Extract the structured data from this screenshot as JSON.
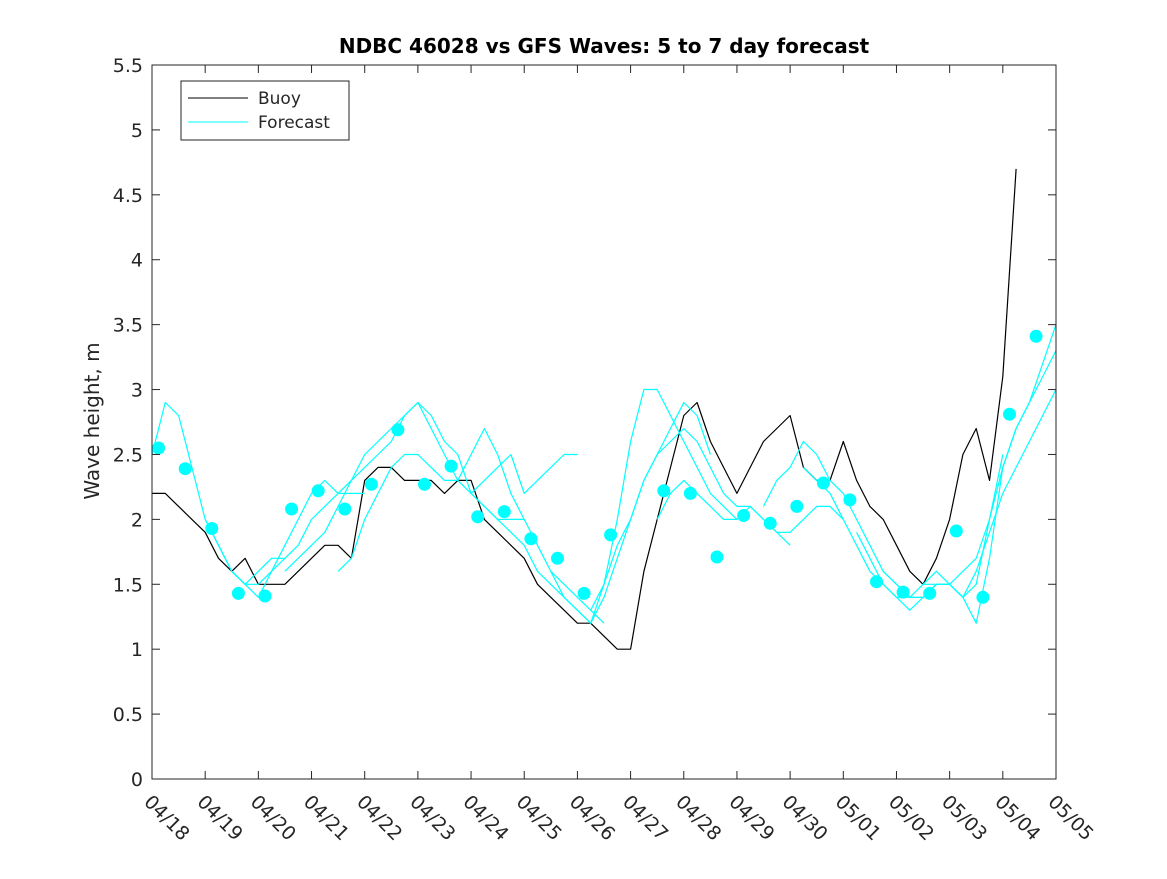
{
  "chart_data": {
    "type": "line",
    "title": "NDBC 46028 vs GFS Waves: 5 to 7 day forecast",
    "xlabel": "",
    "ylabel": "Wave height, m",
    "xlim_days": [
      0,
      17
    ],
    "ylim": [
      0,
      5.5
    ],
    "yticks": [
      0,
      0.5,
      1,
      1.5,
      2,
      2.5,
      3,
      3.5,
      4,
      4.5,
      5,
      5.5
    ],
    "ytick_labels": [
      "0",
      "0.5",
      "1",
      "1.5",
      "2",
      "2.5",
      "3",
      "3.5",
      "4",
      "4.5",
      "5",
      "5.5"
    ],
    "xtick_labels": [
      "04/18",
      "04/19",
      "04/20",
      "04/21",
      "04/22",
      "04/23",
      "04/24",
      "04/25",
      "04/26",
      "04/27",
      "04/28",
      "04/29",
      "04/30",
      "05/01",
      "05/02",
      "05/03",
      "05/04",
      "05/05"
    ],
    "grid": false,
    "legend_position": "top-left",
    "colors": {
      "buoy": "#000000",
      "forecast": "#00ffff"
    },
    "series": [
      {
        "name": "Buoy",
        "style": "line",
        "color": "#000000",
        "x": [
          "04/18 00:00",
          "04/18 06:00",
          "04/18 12:00",
          "04/18 18:00",
          "04/19 00:00",
          "04/19 06:00",
          "04/19 12:00",
          "04/19 18:00",
          "04/20 00:00",
          "04/20 06:00",
          "04/20 12:00",
          "04/20 18:00",
          "04/21 00:00",
          "04/21 06:00",
          "04/21 12:00",
          "04/21 18:00",
          "04/22 00:00",
          "04/22 06:00",
          "04/22 12:00",
          "04/22 18:00",
          "04/23 00:00",
          "04/23 06:00",
          "04/23 12:00",
          "04/23 18:00",
          "04/24 00:00",
          "04/24 06:00",
          "04/24 12:00",
          "04/24 18:00",
          "04/25 00:00",
          "04/25 06:00",
          "04/25 12:00",
          "04/25 18:00",
          "04/26 00:00",
          "04/26 06:00",
          "04/26 12:00",
          "04/26 18:00",
          "04/27 00:00",
          "04/27 06:00",
          "04/27 12:00",
          "04/27 18:00",
          "04/28 00:00",
          "04/28 06:00",
          "04/28 12:00",
          "04/28 18:00",
          "04/29 00:00",
          "04/29 06:00",
          "04/29 12:00",
          "04/29 18:00",
          "04/30 00:00",
          "04/30 06:00",
          "04/30 12:00",
          "04/30 18:00",
          "05/01 00:00",
          "05/01 06:00",
          "05/01 12:00",
          "05/01 18:00",
          "05/02 00:00",
          "05/02 06:00",
          "05/02 12:00",
          "05/02 18:00",
          "05/03 00:00",
          "05/03 06:00",
          "05/03 12:00",
          "05/03 18:00",
          "05/04 00:00",
          "05/04 06:00"
        ],
        "y": [
          2.2,
          2.2,
          2.1,
          2.0,
          1.9,
          1.7,
          1.6,
          1.7,
          1.5,
          1.5,
          1.5,
          1.6,
          1.7,
          1.8,
          1.8,
          1.7,
          2.3,
          2.4,
          2.4,
          2.3,
          2.3,
          2.3,
          2.2,
          2.3,
          2.3,
          2.0,
          1.9,
          1.8,
          1.7,
          1.5,
          1.4,
          1.3,
          1.2,
          1.2,
          1.1,
          1.0,
          1.0,
          1.6,
          2.0,
          2.4,
          2.8,
          2.9,
          2.6,
          2.4,
          2.2,
          2.4,
          2.6,
          2.7,
          2.8,
          2.4,
          2.3,
          2.3,
          2.6,
          2.3,
          2.1,
          2.0,
          1.8,
          1.6,
          1.5,
          1.7,
          2.0,
          2.5,
          2.7,
          2.3,
          3.1,
          4.7
        ]
      },
      {
        "name": "Forecast",
        "style": "line",
        "color": "#00ffff",
        "x": [
          "04/18 00:00",
          "04/18 06:00",
          "04/18 12:00",
          "04/18 18:00",
          "04/19 00:00",
          "04/19 06:00",
          "04/19 12:00",
          "04/19 18:00",
          "04/20 00:00",
          "04/20 06:00",
          "04/20 12:00"
        ],
        "y": [
          2.5,
          2.9,
          2.8,
          2.4,
          2.0,
          1.8,
          1.6,
          1.5,
          1.6,
          1.7,
          1.7
        ]
      },
      {
        "name": "",
        "style": "line",
        "color": "#00ffff",
        "x": [
          "04/19 00:00",
          "04/19 06:00",
          "04/19 12:00",
          "04/19 18:00",
          "04/20 00:00",
          "04/20 06:00",
          "04/20 12:00",
          "04/20 18:00",
          "04/21 00:00",
          "04/21 06:00",
          "04/21 12:00",
          "04/21 18:00",
          "04/22 00:00"
        ],
        "y": [
          2.0,
          1.8,
          1.6,
          1.5,
          1.4,
          1.6,
          1.8,
          2.0,
          2.2,
          2.3,
          2.2,
          2.2,
          2.2
        ]
      },
      {
        "name": "",
        "style": "line",
        "color": "#00ffff",
        "x": [
          "04/19 12:00",
          "04/19 18:00",
          "04/20 00:00",
          "04/20 06:00",
          "04/20 12:00",
          "04/20 18:00",
          "04/21 00:00",
          "04/21 06:00",
          "04/21 12:00",
          "04/21 18:00",
          "04/22 00:00",
          "04/22 06:00",
          "04/22 12:00",
          "04/22 18:00",
          "04/23 00:00",
          "04/23 06:00",
          "04/23 12:00"
        ],
        "y": [
          1.6,
          1.5,
          1.5,
          1.6,
          1.7,
          1.8,
          2.0,
          2.1,
          2.2,
          2.3,
          2.4,
          2.5,
          2.6,
          2.8,
          2.9,
          2.7,
          2.5
        ]
      },
      {
        "name": "",
        "style": "line",
        "color": "#00ffff",
        "x": [
          "04/20 12:00",
          "04/20 18:00",
          "04/21 00:00",
          "04/21 06:00",
          "04/21 12:00",
          "04/21 18:00",
          "04/22 00:00",
          "04/22 06:00",
          "04/22 12:00",
          "04/22 18:00",
          "04/23 00:00",
          "04/23 06:00",
          "04/23 12:00",
          "04/23 18:00",
          "04/24 00:00",
          "04/24 06:00",
          "04/24 12:00",
          "04/24 18:00",
          "04/25 00:00"
        ],
        "y": [
          1.6,
          1.7,
          1.8,
          1.9,
          2.1,
          2.3,
          2.5,
          2.6,
          2.7,
          2.8,
          2.9,
          2.8,
          2.6,
          2.5,
          2.2,
          2.1,
          2.0,
          2.0,
          2.0
        ]
      },
      {
        "name": "",
        "style": "line",
        "color": "#00ffff",
        "x": [
          "04/21 12:00",
          "04/21 18:00",
          "04/22 00:00",
          "04/22 06:00",
          "04/22 12:00",
          "04/22 18:00",
          "04/23 00:00",
          "04/23 06:00",
          "04/23 12:00",
          "04/23 18:00",
          "04/24 00:00",
          "04/24 06:00",
          "04/24 12:00",
          "04/24 18:00",
          "04/25 00:00",
          "04/25 06:00",
          "04/25 12:00",
          "04/25 18:00",
          "04/26 00:00",
          "04/26 06:00",
          "04/26 12:00"
        ],
        "y": [
          1.6,
          1.7,
          2.0,
          2.2,
          2.4,
          2.5,
          2.5,
          2.4,
          2.3,
          2.3,
          2.5,
          2.7,
          2.5,
          2.2,
          2.0,
          1.8,
          1.6,
          1.5,
          1.4,
          1.3,
          1.2
        ]
      },
      {
        "name": "",
        "style": "line",
        "color": "#00ffff",
        "x": [
          "04/23 12:00",
          "04/23 18:00",
          "04/24 00:00",
          "04/24 06:00",
          "04/24 12:00",
          "04/24 18:00",
          "04/25 00:00",
          "04/25 06:00",
          "04/25 12:00",
          "04/25 18:00",
          "04/26 00:00"
        ],
        "y": [
          2.5,
          2.3,
          2.2,
          2.3,
          2.4,
          2.5,
          2.2,
          2.3,
          2.4,
          2.5,
          2.5
        ]
      },
      {
        "name": "",
        "style": "line",
        "color": "#00ffff",
        "x": [
          "04/24 00:00",
          "04/24 06:00",
          "04/24 12:00",
          "04/24 18:00",
          "04/25 00:00",
          "04/25 06:00",
          "04/25 12:00",
          "04/25 18:00",
          "04/26 00:00",
          "04/26 06:00",
          "04/26 12:00",
          "04/26 18:00",
          "04/27 00:00",
          "04/27 06:00",
          "04/27 12:00",
          "04/27 18:00",
          "04/28 00:00",
          "04/28 06:00",
          "04/28 12:00"
        ],
        "y": [
          2.2,
          2.1,
          2.0,
          1.9,
          1.8,
          1.6,
          1.5,
          1.4,
          1.3,
          1.2,
          1.4,
          1.7,
          2.0,
          2.3,
          2.5,
          2.7,
          2.9,
          2.8,
          2.5
        ]
      },
      {
        "name": "",
        "style": "line",
        "color": "#00ffff",
        "x": [
          "04/25 12:00",
          "04/25 18:00",
          "04/26 00:00",
          "04/26 06:00",
          "04/26 12:00",
          "04/26 18:00",
          "04/27 00:00",
          "04/27 06:00",
          "04/27 12:00",
          "04/27 18:00",
          "04/28 00:00",
          "04/28 06:00",
          "04/28 12:00",
          "04/28 18:00",
          "04/29 00:00"
        ],
        "y": [
          1.6,
          1.4,
          1.3,
          1.2,
          1.5,
          2.0,
          2.6,
          3.0,
          3.0,
          2.8,
          2.6,
          2.4,
          2.2,
          2.1,
          2.0
        ]
      },
      {
        "name": "",
        "style": "line",
        "color": "#00ffff",
        "x": [
          "04/26 06:00",
          "04/26 12:00",
          "04/26 18:00",
          "04/27 00:00",
          "04/27 06:00",
          "04/27 12:00",
          "04/27 18:00",
          "04/28 00:00",
          "04/28 06:00",
          "04/28 12:00",
          "04/28 18:00",
          "04/29 00:00",
          "04/29 06:00",
          "04/29 12:00",
          "04/29 18:00",
          "04/30 00:00"
        ],
        "y": [
          1.3,
          1.5,
          1.8,
          2.0,
          2.3,
          2.5,
          2.6,
          2.7,
          2.6,
          2.4,
          2.2,
          2.1,
          2.1,
          2.0,
          1.9,
          1.8
        ]
      },
      {
        "name": "",
        "style": "line",
        "color": "#00ffff",
        "x": [
          "04/27 12:00",
          "04/27 18:00",
          "04/28 00:00",
          "04/28 06:00",
          "04/28 12:00",
          "04/28 18:00",
          "04/29 00:00",
          "04/29 06:00",
          "04/29 12:00",
          "04/29 18:00",
          "04/30 00:00",
          "04/30 06:00",
          "04/30 12:00",
          "04/30 18:00",
          "05/01 00:00"
        ],
        "y": [
          2.0,
          2.2,
          2.3,
          2.2,
          2.1,
          2.0,
          2.0,
          2.1,
          2.0,
          1.9,
          1.9,
          2.0,
          2.1,
          2.1,
          2.0
        ]
      },
      {
        "name": "",
        "style": "line",
        "color": "#00ffff",
        "x": [
          "04/29 12:00",
          "04/29 18:00",
          "04/30 00:00",
          "04/30 06:00",
          "04/30 12:00",
          "04/30 18:00",
          "05/01 00:00",
          "05/01 06:00",
          "05/01 12:00",
          "05/01 18:00",
          "05/02 00:00",
          "05/02 06:00",
          "05/02 12:00",
          "05/02 18:00",
          "05/03 00:00"
        ],
        "y": [
          2.1,
          2.3,
          2.4,
          2.6,
          2.5,
          2.3,
          2.2,
          2.0,
          1.8,
          1.6,
          1.5,
          1.4,
          1.4,
          1.5,
          1.5
        ]
      },
      {
        "name": "",
        "style": "line",
        "color": "#00ffff",
        "x": [
          "04/30 06:00",
          "04/30 12:00",
          "04/30 18:00",
          "05/01 00:00",
          "05/01 06:00",
          "05/01 12:00",
          "05/01 18:00",
          "05/02 00:00",
          "05/02 06:00",
          "05/02 12:00",
          "05/02 18:00",
          "05/03 00:00",
          "05/03 06:00",
          "05/03 12:00",
          "05/03 18:00",
          "05/04 00:00"
        ],
        "y": [
          2.4,
          2.3,
          2.2,
          2.0,
          1.8,
          1.6,
          1.5,
          1.4,
          1.4,
          1.5,
          1.6,
          1.5,
          1.4,
          1.5,
          2.0,
          2.5
        ]
      },
      {
        "name": "",
        "style": "line",
        "color": "#00ffff",
        "x": [
          "05/01 06:00",
          "05/01 12:00",
          "05/01 18:00",
          "05/02 00:00",
          "05/02 06:00",
          "05/02 12:00",
          "05/02 18:00",
          "05/03 00:00",
          "05/03 06:00",
          "05/03 12:00",
          "05/03 18:00",
          "05/04 00:00",
          "05/04 06:00",
          "05/04 12:00",
          "05/04 18:00",
          "05/05 00:00"
        ],
        "y": [
          1.9,
          1.7,
          1.5,
          1.4,
          1.3,
          1.4,
          1.5,
          1.5,
          1.6,
          1.7,
          2.0,
          2.4,
          2.7,
          2.9,
          3.1,
          3.3
        ]
      },
      {
        "name": "",
        "style": "line",
        "color": "#00ffff",
        "x": [
          "05/01 18:00",
          "05/02 00:00",
          "05/02 06:00",
          "05/02 12:00",
          "05/02 18:00",
          "05/03 00:00",
          "05/03 06:00",
          "05/03 12:00",
          "05/03 18:00",
          "05/04 00:00",
          "05/04 06:00",
          "05/04 12:00",
          "05/04 18:00",
          "05/05 00:00"
        ],
        "y": [
          1.6,
          1.5,
          1.4,
          1.4,
          1.5,
          1.5,
          1.4,
          1.2,
          1.7,
          2.4,
          2.7,
          2.9,
          3.2,
          3.5
        ]
      },
      {
        "name": "",
        "style": "line",
        "color": "#00ffff",
        "x": [
          "05/02 12:00",
          "05/02 18:00",
          "05/03 00:00",
          "05/03 06:00",
          "05/03 12:00",
          "05/03 18:00",
          "05/04 00:00",
          "05/04 06:00",
          "05/04 12:00",
          "05/04 18:00",
          "05/05 00:00"
        ],
        "y": [
          1.5,
          1.5,
          1.5,
          1.4,
          1.6,
          1.9,
          2.2,
          2.4,
          2.6,
          2.8,
          3.0
        ]
      },
      {
        "name": "",
        "style": "markers",
        "color": "#00ffff",
        "x": [
          "04/18 03:00",
          "04/18 15:00",
          "04/19 03:00",
          "04/19 15:00",
          "04/20 03:00",
          "04/20 15:00",
          "04/21 03:00",
          "04/21 15:00",
          "04/22 03:00",
          "04/22 15:00",
          "04/23 03:00",
          "04/23 15:00",
          "04/24 03:00",
          "04/24 15:00",
          "04/25 03:00",
          "04/25 15:00",
          "04/26 03:00",
          "04/26 15:00",
          "04/27 15:00",
          "04/28 03:00",
          "04/28 15:00",
          "04/29 03:00",
          "04/29 15:00",
          "04/30 03:00",
          "04/30 15:00",
          "05/01 03:00",
          "05/01 15:00",
          "05/02 03:00",
          "05/02 15:00",
          "05/03 03:00",
          "05/03 15:00",
          "05/04 03:00",
          "05/04 15:00"
        ],
        "y": [
          2.55,
          2.39,
          1.93,
          1.43,
          1.41,
          2.08,
          2.22,
          2.08,
          2.27,
          2.69,
          2.27,
          2.41,
          2.02,
          2.06,
          1.85,
          1.7,
          1.43,
          1.88,
          2.22,
          2.2,
          1.71,
          2.03,
          1.97,
          2.1,
          2.28,
          2.15,
          1.52,
          1.44,
          1.43,
          1.91,
          1.4,
          2.81,
          3.41
        ]
      }
    ]
  }
}
